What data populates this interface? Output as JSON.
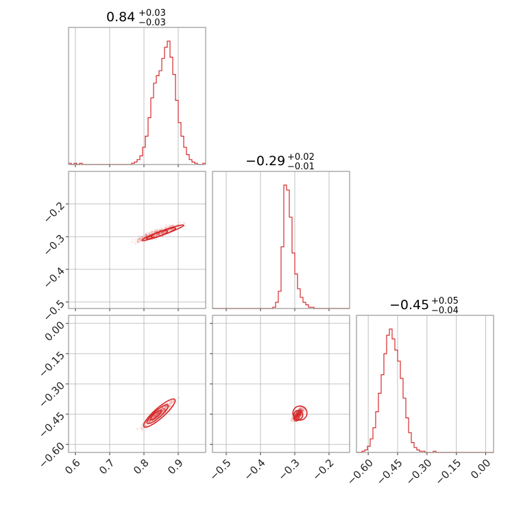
{
  "figure": {
    "type": "corner",
    "color": "#d62728"
  },
  "chart_data": [
    {
      "type": "histogram",
      "panel": "p0_0",
      "title": {
        "main": "0.84",
        "sup": "+0.03",
        "sub": "−0.03"
      },
      "xlim": [
        0.58,
        0.98
      ],
      "bin_edges_start": 0.58,
      "bin_width": 0.008,
      "counts": [
        1,
        0,
        1,
        0,
        1,
        0,
        0,
        0,
        0,
        0,
        0,
        0,
        0,
        0,
        0,
        0,
        0,
        0,
        0,
        0,
        0,
        0,
        0,
        1,
        2,
        4,
        7,
        14,
        23,
        38,
        54,
        66,
        72,
        76,
        86,
        95,
        100,
        87,
        73,
        52,
        34,
        23,
        14,
        8,
        4,
        2,
        1,
        0,
        0,
        1
      ]
    },
    {
      "type": "histogram",
      "panel": "p1_1",
      "title": {
        "main": "−0.29",
        "sup": "+0.02",
        "sub": "−0.01"
      },
      "xlim": [
        -0.54,
        -0.14
      ],
      "bin_edges_start": -0.54,
      "bin_width": 0.008,
      "counts": [
        0,
        0,
        0,
        0,
        0,
        0,
        0,
        0,
        0,
        0,
        0,
        0,
        0,
        0,
        0,
        0,
        0,
        0,
        0,
        0,
        0,
        0,
        1,
        5,
        14,
        50,
        100,
        96,
        74,
        45,
        28,
        16,
        9,
        5,
        3,
        1,
        1,
        0,
        0,
        0,
        0,
        0,
        0,
        0,
        0,
        0,
        0,
        0,
        0,
        0
      ]
    },
    {
      "type": "histogram",
      "panel": "p2_2",
      "title": {
        "main": "−0.45",
        "sup": "+0.05",
        "sub": "−0.04"
      },
      "xlim": [
        -0.66,
        0.04
      ],
      "bin_edges_start": -0.66,
      "bin_width": 0.014,
      "counts": [
        0,
        0,
        1,
        2,
        5,
        11,
        20,
        33,
        48,
        63,
        80,
        95,
        100,
        92,
        83,
        74,
        60,
        44,
        28,
        16,
        8,
        4,
        2,
        1,
        1,
        0,
        0,
        0,
        1,
        0,
        0,
        0,
        0,
        0,
        0,
        0,
        0,
        0,
        0,
        0,
        0,
        0,
        0,
        0,
        0,
        0,
        0,
        0,
        0,
        0
      ]
    },
    {
      "type": "scatter-density",
      "panel": "p1_0",
      "xlim": [
        0.58,
        0.98
      ],
      "ylim": [
        -0.52,
        -0.1
      ],
      "center": [
        0.84,
        -0.29
      ],
      "band": {
        "slope": 0.38,
        "half_length": 0.09,
        "half_width": 0.012
      },
      "contours": [
        {
          "cx": 0.845,
          "cy": -0.292,
          "rx": 0.025,
          "ry": 0.006
        },
        {
          "cx": 0.85,
          "cy": -0.29,
          "rx": 0.045,
          "ry": 0.009
        },
        {
          "cx": 0.855,
          "cy": -0.288,
          "rx": 0.065,
          "ry": 0.012
        }
      ]
    },
    {
      "type": "scatter-density",
      "panel": "p2_0",
      "xlim": [
        0.58,
        0.98
      ],
      "ylim": [
        -0.64,
        0.04
      ],
      "center": [
        0.84,
        -0.45
      ],
      "band": {
        "slope": 1.5,
        "half_length": 0.12,
        "half_width": 0.015
      },
      "contours": [
        {
          "cx": 0.835,
          "cy": -0.455,
          "rx": 0.02,
          "ry": 0.02
        },
        {
          "cx": 0.84,
          "cy": -0.45,
          "rx": 0.04,
          "ry": 0.035
        },
        {
          "cx": 0.845,
          "cy": -0.445,
          "rx": 0.06,
          "ry": 0.05
        }
      ]
    },
    {
      "type": "scatter-density",
      "panel": "p2_1",
      "xlim": [
        -0.54,
        -0.14
      ],
      "ylim": [
        -0.64,
        0.04
      ],
      "center": [
        -0.29,
        -0.45
      ],
      "band": {
        "slope": 2.6,
        "half_length": 0.05,
        "half_width": 0.012
      },
      "contours": [
        {
          "cx": -0.295,
          "cy": -0.47,
          "rx": 0.008,
          "ry": 0.025
        },
        {
          "cx": -0.29,
          "cy": -0.455,
          "rx": 0.014,
          "ry": 0.045
        },
        {
          "cx": -0.285,
          "cy": -0.445,
          "rx": 0.02,
          "ry": 0.07
        }
      ]
    }
  ],
  "axes": {
    "x0_ticks": [
      "0.6",
      "0.7",
      "0.8",
      "0.9"
    ],
    "x0_values": [
      0.6,
      0.7,
      0.8,
      0.9
    ],
    "x1_ticks": [
      "−0.5",
      "−0.4",
      "−0.3",
      "−0.2"
    ],
    "x1_values": [
      -0.5,
      -0.4,
      -0.3,
      -0.2
    ],
    "x2_ticks": [
      "−0.60",
      "−0.45",
      "−0.30",
      "−0.15",
      "0.00"
    ],
    "x2_values": [
      -0.6,
      -0.45,
      -0.3,
      -0.15,
      0.0
    ],
    "y1_ticks": [
      "−0.2",
      "−0.3",
      "−0.4",
      "−0.5"
    ],
    "y1_values": [
      -0.2,
      -0.3,
      -0.4,
      -0.5
    ],
    "y2_ticks": [
      "0.00",
      "−0.15",
      "−0.30",
      "−0.45",
      "−0.60"
    ],
    "y2_values": [
      0.0,
      -0.15,
      -0.3,
      -0.45,
      -0.6
    ]
  }
}
